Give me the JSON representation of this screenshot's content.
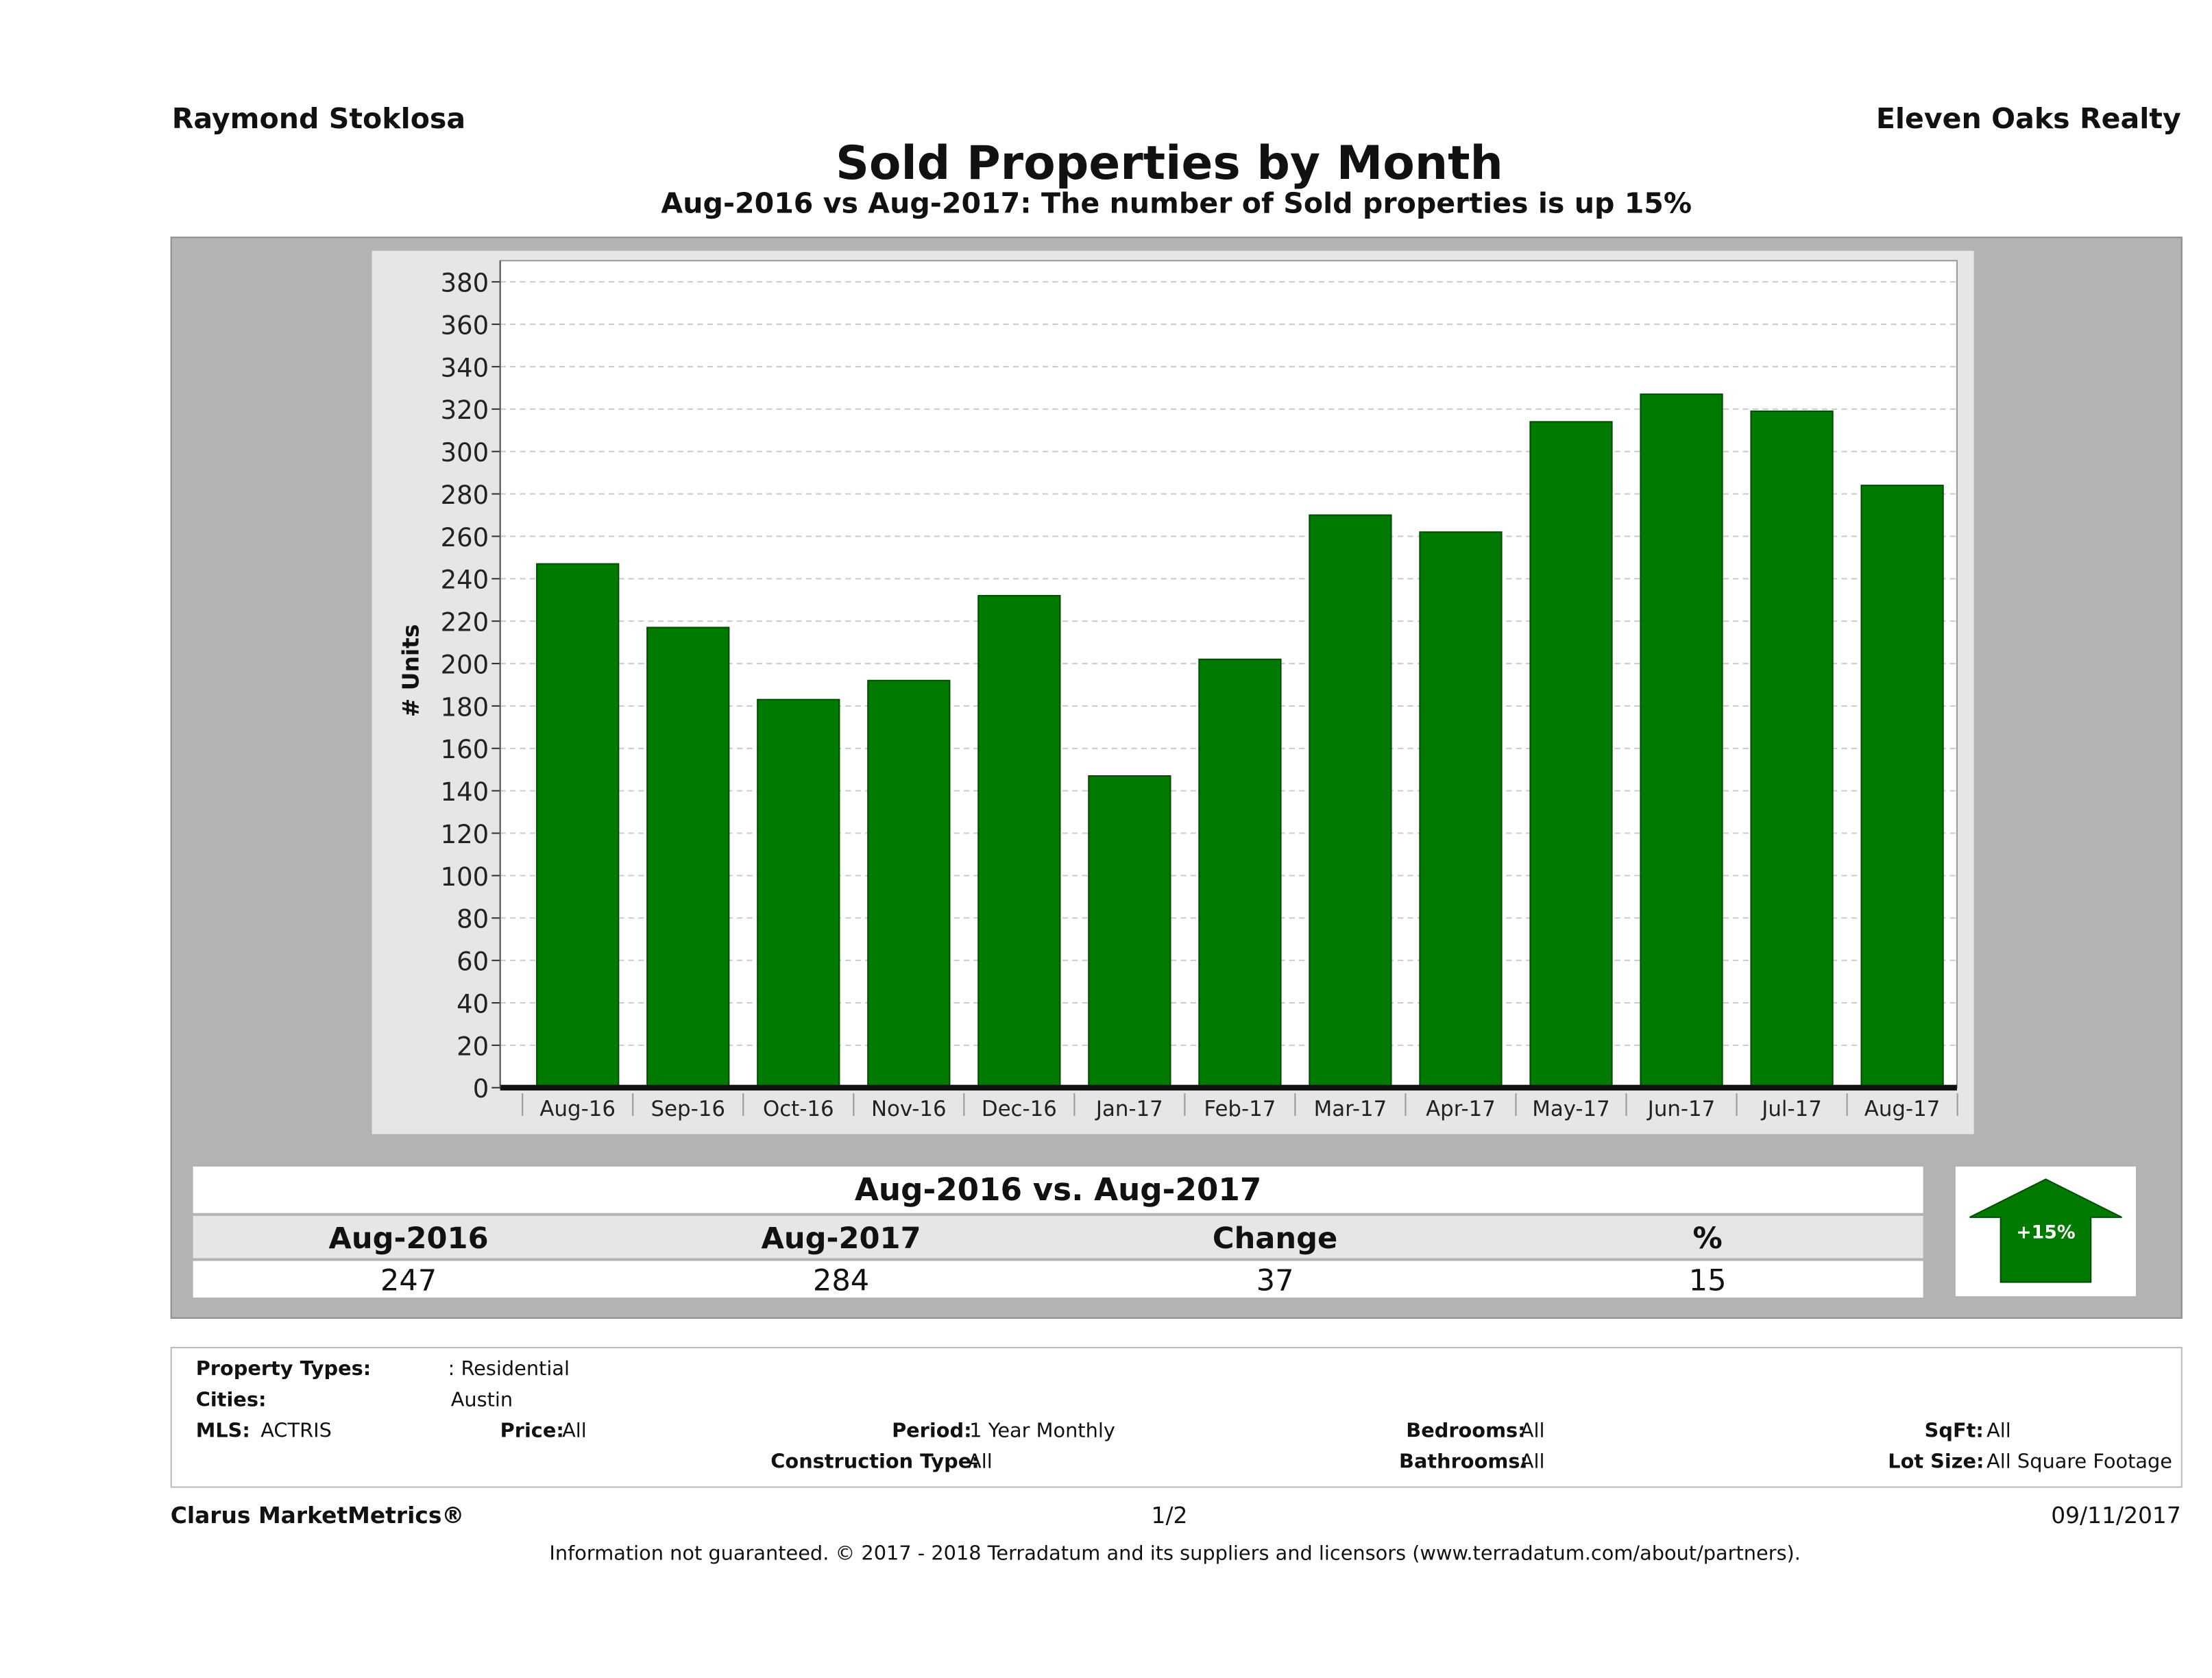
{
  "header": {
    "agent_name": "Raymond Stoklosa",
    "brokerage": "Eleven Oaks Realty",
    "title": "Sold Properties by Month",
    "subtitle": "Aug-2016 vs Aug-2017: The number of Sold  properties is up 15%"
  },
  "chart_data": {
    "type": "bar",
    "categories": [
      "Aug-16",
      "Sep-16",
      "Oct-16",
      "Nov-16",
      "Dec-16",
      "Jan-17",
      "Feb-17",
      "Mar-17",
      "Apr-17",
      "May-17",
      "Jun-17",
      "Jul-17",
      "Aug-17"
    ],
    "values": [
      247,
      217,
      183,
      192,
      232,
      147,
      202,
      270,
      262,
      314,
      327,
      319,
      284
    ],
    "ylabel": "# Units",
    "ylim": [
      0,
      390
    ],
    "yticks": [
      0,
      20,
      40,
      60,
      80,
      100,
      120,
      140,
      160,
      180,
      200,
      220,
      240,
      260,
      280,
      300,
      320,
      340,
      360,
      380
    ],
    "bar_color": "#007a00",
    "grid": true
  },
  "summary": {
    "title": "Aug-2016 vs. Aug-2017",
    "headers": [
      "Aug-2016",
      "Aug-2017",
      "Change",
      "%"
    ],
    "values": [
      "247",
      "284",
      "37",
      "15"
    ],
    "badge": "+15%",
    "badge_icon": "up-arrow-icon",
    "badge_color": "#007a00"
  },
  "details": {
    "property_types_label": "Property Types:",
    "property_types": ": Residential",
    "cities_label": "Cities:",
    "cities": "Austin",
    "mls_label": "MLS:",
    "mls": "ACTRIS",
    "price_label": "Price:",
    "price": "All",
    "period_label": "Period:",
    "period": "1 Year Monthly",
    "construction_label": "Construction Type:",
    "construction": "All",
    "bedrooms_label": "Bedrooms:",
    "bedrooms": "All",
    "bathrooms_label": "Bathrooms:",
    "bathrooms": "All",
    "sqft_label": "SqFt:",
    "sqft": "All",
    "lot_label": "Lot Size:",
    "lot": "All Square Footage"
  },
  "footer": {
    "brand": "Clarus MarketMetrics®",
    "page": "1/2",
    "date": "09/11/2017",
    "disclaimer": "Information not guaranteed. © 2017 - 2018 Terradatum and its suppliers and licensors (www.terradatum.com/about/partners)."
  }
}
